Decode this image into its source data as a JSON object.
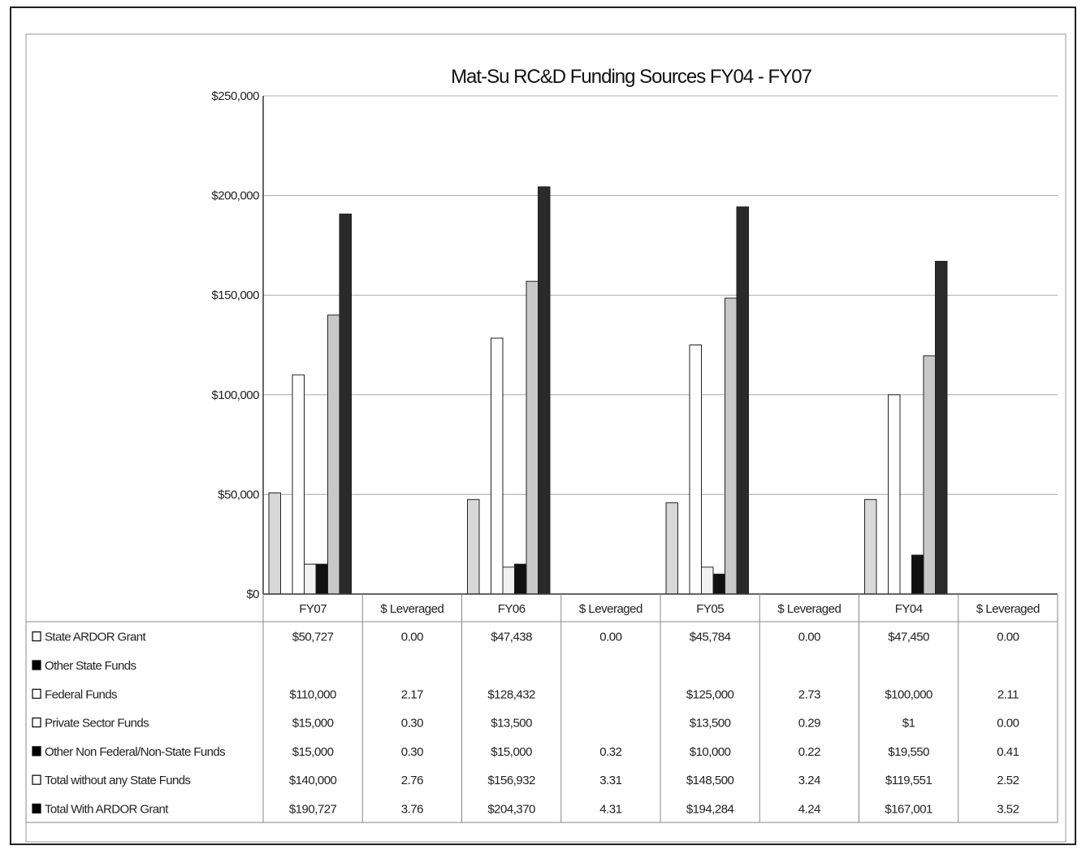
{
  "chart_data": {
    "type": "bar",
    "title": "Mat-Su RC&D Funding Sources FY04 - FY07",
    "y_ticks": [
      "$0",
      "$50,000",
      "$100,000",
      "$150,000",
      "$200,000",
      "$250,000"
    ],
    "ylim": [
      0,
      250000
    ],
    "grid": true,
    "categories": [
      "FY07",
      "$ Leveraged",
      "FY06",
      "$ Leveraged",
      "FY05",
      "$ Leveraged",
      "FY04",
      "$ Leveraged"
    ],
    "series": [
      {
        "name": "State ARDOR Grant",
        "color": "#d8d8d8",
        "legend_symbol": "□",
        "values": [
          50727,
          0,
          47438,
          0,
          45784,
          0,
          47450,
          0
        ],
        "cells": [
          "$50,727",
          "0.00",
          "$47,438",
          "0.00",
          "$45,784",
          "0.00",
          "$47,450",
          "0.00"
        ]
      },
      {
        "name": "Other State Funds",
        "color": "#000000",
        "legend_symbol": "■",
        "values": [
          0,
          0,
          0,
          0,
          0,
          0,
          0,
          0
        ],
        "cells": [
          "",
          "",
          "",
          "",
          "",
          "",
          "",
          ""
        ]
      },
      {
        "name": "Federal Funds",
        "color": "#ffffff",
        "legend_symbol": "□",
        "values": [
          110000,
          2.17,
          128432,
          0,
          125000,
          2.73,
          100000,
          2.11
        ],
        "cells": [
          "$110,000",
          "2.17",
          "$128,432",
          "",
          "$125,000",
          "2.73",
          "$100,000",
          "2.11"
        ]
      },
      {
        "name": "Private Sector Funds",
        "color": "#f2f2f2",
        "legend_symbol": "□",
        "values": [
          15000,
          0.3,
          13500,
          0,
          13500,
          0.29,
          1,
          0.0
        ],
        "cells": [
          "$15,000",
          "0.30",
          "$13,500",
          "",
          "$13,500",
          "0.29",
          "$1",
          "0.00"
        ]
      },
      {
        "name": "Other Non Federal/Non-State Funds",
        "color": "#111111",
        "legend_symbol": "■",
        "values": [
          15000,
          0.3,
          15000,
          0.32,
          10000,
          0.22,
          19550,
          0.41
        ],
        "cells": [
          "$15,000",
          "0.30",
          "$15,000",
          "0.32",
          "$10,000",
          "0.22",
          "$19,550",
          "0.41"
        ]
      },
      {
        "name": "Total without any State Funds",
        "color": "#c8c8c8",
        "legend_symbol": "□",
        "values": [
          140000,
          2.76,
          156932,
          3.31,
          148500,
          3.24,
          119551,
          2.52
        ],
        "cells": [
          "$140,000",
          "2.76",
          "$156,932",
          "3.31",
          "$148,500",
          "3.24",
          "$119,551",
          "2.52"
        ]
      },
      {
        "name": "Total With ARDOR Grant",
        "color": "#2a2a2a",
        "legend_symbol": "■",
        "values": [
          190727,
          3.76,
          204370,
          4.31,
          194284,
          4.24,
          167001,
          3.52
        ],
        "cells": [
          "$190,727",
          "3.76",
          "$204,370",
          "4.31",
          "$194,284",
          "4.24",
          "$167,001",
          "3.52"
        ]
      }
    ]
  }
}
